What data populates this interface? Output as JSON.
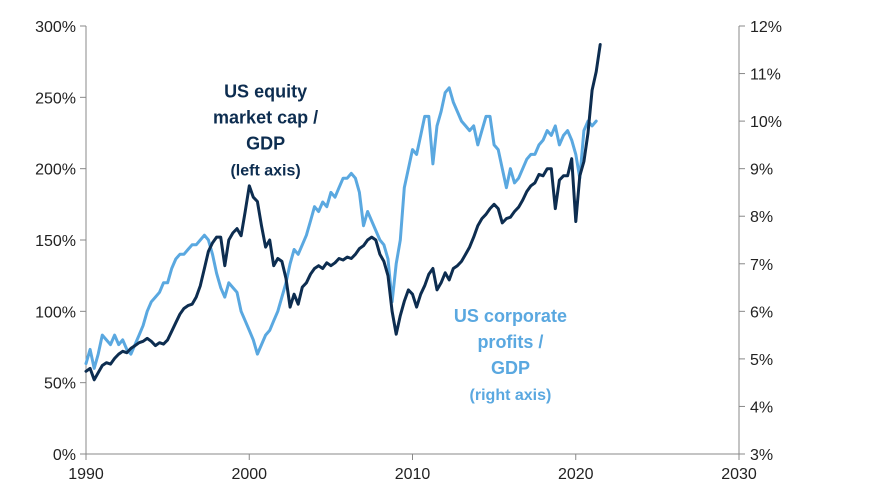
{
  "chart_data": {
    "type": "line",
    "title": "",
    "xlabel": "",
    "ylabel_left": "",
    "ylabel_right": "",
    "xlim": [
      1990,
      2030
    ],
    "ylim_left": [
      0,
      300
    ],
    "ylim_right": [
      3,
      12
    ],
    "grid": false,
    "x_ticks": [
      1990,
      2000,
      2010,
      2020,
      2030
    ],
    "x_tick_labels": [
      "1990",
      "2000",
      "2010",
      "2020",
      "2030"
    ],
    "y_left_ticks": [
      0,
      50,
      100,
      150,
      200,
      250,
      300
    ],
    "y_left_tick_labels": [
      "0%",
      "50%",
      "100%",
      "150%",
      "200%",
      "250%",
      "300%"
    ],
    "y_right_ticks": [
      3,
      4,
      5,
      6,
      7,
      8,
      9,
      10,
      11,
      12
    ],
    "y_right_tick_labels": [
      "3%",
      "4%",
      "5%",
      "6%",
      "7%",
      "8%",
      "9%",
      "10%",
      "11%",
      "12%"
    ],
    "series": [
      {
        "name": "",
        "axis": "left",
        "color": "#0d2d50",
        "points": [
          [
            1990.0,
            58
          ],
          [
            1990.25,
            60
          ],
          [
            1990.5,
            52
          ],
          [
            1990.75,
            57
          ],
          [
            1991.0,
            62
          ],
          [
            1991.25,
            64
          ],
          [
            1991.5,
            63
          ],
          [
            1991.75,
            67
          ],
          [
            1992.0,
            70
          ],
          [
            1992.25,
            72
          ],
          [
            1992.5,
            71
          ],
          [
            1992.75,
            74
          ],
          [
            1993.0,
            76
          ],
          [
            1993.25,
            78
          ],
          [
            1993.5,
            79
          ],
          [
            1993.75,
            81
          ],
          [
            1994.0,
            79
          ],
          [
            1994.25,
            76
          ],
          [
            1994.5,
            78
          ],
          [
            1994.75,
            77
          ],
          [
            1995.0,
            80
          ],
          [
            1995.25,
            86
          ],
          [
            1995.5,
            92
          ],
          [
            1995.75,
            98
          ],
          [
            1996.0,
            102
          ],
          [
            1996.25,
            104
          ],
          [
            1996.5,
            105
          ],
          [
            1996.75,
            110
          ],
          [
            1997.0,
            118
          ],
          [
            1997.25,
            130
          ],
          [
            1997.5,
            142
          ],
          [
            1997.75,
            148
          ],
          [
            1998.0,
            152
          ],
          [
            1998.25,
            152
          ],
          [
            1998.5,
            132
          ],
          [
            1998.75,
            150
          ],
          [
            1999.0,
            155
          ],
          [
            1999.25,
            158
          ],
          [
            1999.5,
            153
          ],
          [
            1999.75,
            170
          ],
          [
            2000.0,
            188
          ],
          [
            2000.25,
            180
          ],
          [
            2000.5,
            177
          ],
          [
            2000.75,
            160
          ],
          [
            2001.0,
            145
          ],
          [
            2001.25,
            150
          ],
          [
            2001.5,
            132
          ],
          [
            2001.75,
            137
          ],
          [
            2002.0,
            135
          ],
          [
            2002.25,
            123
          ],
          [
            2002.5,
            103
          ],
          [
            2002.75,
            112
          ],
          [
            2003.0,
            105
          ],
          [
            2003.25,
            117
          ],
          [
            2003.5,
            120
          ],
          [
            2003.75,
            126
          ],
          [
            2004.0,
            130
          ],
          [
            2004.25,
            132
          ],
          [
            2004.5,
            130
          ],
          [
            2004.75,
            134
          ],
          [
            2005.0,
            132
          ],
          [
            2005.25,
            134
          ],
          [
            2005.5,
            137
          ],
          [
            2005.75,
            136
          ],
          [
            2006.0,
            138
          ],
          [
            2006.25,
            137
          ],
          [
            2006.5,
            140
          ],
          [
            2006.75,
            144
          ],
          [
            2007.0,
            146
          ],
          [
            2007.25,
            150
          ],
          [
            2007.5,
            152
          ],
          [
            2007.75,
            150
          ],
          [
            2008.0,
            140
          ],
          [
            2008.25,
            135
          ],
          [
            2008.5,
            125
          ],
          [
            2008.75,
            100
          ],
          [
            2009.0,
            84
          ],
          [
            2009.25,
            97
          ],
          [
            2009.5,
            107
          ],
          [
            2009.75,
            115
          ],
          [
            2010.0,
            112
          ],
          [
            2010.25,
            103
          ],
          [
            2010.5,
            112
          ],
          [
            2010.75,
            118
          ],
          [
            2011.0,
            126
          ],
          [
            2011.25,
            130
          ],
          [
            2011.5,
            115
          ],
          [
            2011.75,
            120
          ],
          [
            2012.0,
            127
          ],
          [
            2012.25,
            122
          ],
          [
            2012.5,
            130
          ],
          [
            2012.75,
            132
          ],
          [
            2013.0,
            135
          ],
          [
            2013.25,
            140
          ],
          [
            2013.5,
            145
          ],
          [
            2013.75,
            152
          ],
          [
            2014.0,
            160
          ],
          [
            2014.25,
            165
          ],
          [
            2014.5,
            168
          ],
          [
            2014.75,
            172
          ],
          [
            2015.0,
            175
          ],
          [
            2015.25,
            172
          ],
          [
            2015.5,
            162
          ],
          [
            2015.75,
            165
          ],
          [
            2016.0,
            166
          ],
          [
            2016.25,
            170
          ],
          [
            2016.5,
            173
          ],
          [
            2016.75,
            178
          ],
          [
            2017.0,
            184
          ],
          [
            2017.25,
            188
          ],
          [
            2017.5,
            190
          ],
          [
            2017.75,
            196
          ],
          [
            2018.0,
            195
          ],
          [
            2018.25,
            200
          ],
          [
            2018.5,
            200
          ],
          [
            2018.75,
            172
          ],
          [
            2019.0,
            192
          ],
          [
            2019.25,
            195
          ],
          [
            2019.5,
            195
          ],
          [
            2019.75,
            207
          ],
          [
            2020.0,
            163
          ],
          [
            2020.25,
            195
          ],
          [
            2020.5,
            205
          ],
          [
            2020.75,
            225
          ],
          [
            2021.0,
            255
          ],
          [
            2021.25,
            268
          ],
          [
            2021.5,
            287
          ]
        ]
      },
      {
        "name": "",
        "axis": "right",
        "color": "#5aa8e0",
        "points": [
          [
            1990.0,
            4.9
          ],
          [
            1990.25,
            5.2
          ],
          [
            1990.5,
            4.8
          ],
          [
            1990.75,
            5.1
          ],
          [
            1991.0,
            5.5
          ],
          [
            1991.25,
            5.4
          ],
          [
            1991.5,
            5.3
          ],
          [
            1991.75,
            5.5
          ],
          [
            1992.0,
            5.3
          ],
          [
            1992.25,
            5.4
          ],
          [
            1992.5,
            5.2
          ],
          [
            1992.75,
            5.1
          ],
          [
            1993.0,
            5.3
          ],
          [
            1993.25,
            5.5
          ],
          [
            1993.5,
            5.7
          ],
          [
            1993.75,
            6.0
          ],
          [
            1994.0,
            6.2
          ],
          [
            1994.25,
            6.3
          ],
          [
            1994.5,
            6.4
          ],
          [
            1994.75,
            6.6
          ],
          [
            1995.0,
            6.6
          ],
          [
            1995.25,
            6.9
          ],
          [
            1995.5,
            7.1
          ],
          [
            1995.75,
            7.2
          ],
          [
            1996.0,
            7.2
          ],
          [
            1996.25,
            7.3
          ],
          [
            1996.5,
            7.4
          ],
          [
            1996.75,
            7.4
          ],
          [
            1997.0,
            7.5
          ],
          [
            1997.25,
            7.6
          ],
          [
            1997.5,
            7.5
          ],
          [
            1997.75,
            7.2
          ],
          [
            1998.0,
            6.8
          ],
          [
            1998.25,
            6.5
          ],
          [
            1998.5,
            6.3
          ],
          [
            1998.75,
            6.6
          ],
          [
            1999.0,
            6.5
          ],
          [
            1999.25,
            6.4
          ],
          [
            1999.5,
            6.0
          ],
          [
            1999.75,
            5.8
          ],
          [
            2000.0,
            5.6
          ],
          [
            2000.25,
            5.4
          ],
          [
            2000.5,
            5.1
          ],
          [
            2000.75,
            5.3
          ],
          [
            2001.0,
            5.5
          ],
          [
            2001.25,
            5.6
          ],
          [
            2001.5,
            5.8
          ],
          [
            2001.75,
            6.0
          ],
          [
            2002.0,
            6.3
          ],
          [
            2002.25,
            6.6
          ],
          [
            2002.5,
            7.0
          ],
          [
            2002.75,
            7.3
          ],
          [
            2003.0,
            7.2
          ],
          [
            2003.25,
            7.4
          ],
          [
            2003.5,
            7.6
          ],
          [
            2003.75,
            7.9
          ],
          [
            2004.0,
            8.2
          ],
          [
            2004.25,
            8.1
          ],
          [
            2004.5,
            8.3
          ],
          [
            2004.75,
            8.2
          ],
          [
            2005.0,
            8.5
          ],
          [
            2005.25,
            8.4
          ],
          [
            2005.5,
            8.6
          ],
          [
            2005.75,
            8.8
          ],
          [
            2006.0,
            8.8
          ],
          [
            2006.25,
            8.9
          ],
          [
            2006.5,
            8.8
          ],
          [
            2006.75,
            8.5
          ],
          [
            2007.0,
            7.8
          ],
          [
            2007.25,
            8.1
          ],
          [
            2007.5,
            7.9
          ],
          [
            2007.75,
            7.7
          ],
          [
            2008.0,
            7.5
          ],
          [
            2008.25,
            7.4
          ],
          [
            2008.5,
            7.1
          ],
          [
            2008.75,
            6.2
          ],
          [
            2009.0,
            7.0
          ],
          [
            2009.25,
            7.5
          ],
          [
            2009.5,
            8.6
          ],
          [
            2009.75,
            9.0
          ],
          [
            2010.0,
            9.4
          ],
          [
            2010.25,
            9.3
          ],
          [
            2010.5,
            9.7
          ],
          [
            2010.75,
            10.1
          ],
          [
            2011.0,
            10.1
          ],
          [
            2011.25,
            9.1
          ],
          [
            2011.5,
            9.9
          ],
          [
            2011.75,
            10.2
          ],
          [
            2012.0,
            10.6
          ],
          [
            2012.25,
            10.7
          ],
          [
            2012.5,
            10.4
          ],
          [
            2012.75,
            10.2
          ],
          [
            2013.0,
            10.0
          ],
          [
            2013.25,
            9.9
          ],
          [
            2013.5,
            9.8
          ],
          [
            2013.75,
            9.9
          ],
          [
            2014.0,
            9.5
          ],
          [
            2014.25,
            9.8
          ],
          [
            2014.5,
            10.1
          ],
          [
            2014.75,
            10.1
          ],
          [
            2015.0,
            9.5
          ],
          [
            2015.25,
            9.4
          ],
          [
            2015.5,
            9.0
          ],
          [
            2015.75,
            8.6
          ],
          [
            2016.0,
            9.0
          ],
          [
            2016.25,
            8.7
          ],
          [
            2016.5,
            8.8
          ],
          [
            2016.75,
            9.0
          ],
          [
            2017.0,
            9.2
          ],
          [
            2017.25,
            9.3
          ],
          [
            2017.5,
            9.3
          ],
          [
            2017.75,
            9.5
          ],
          [
            2018.0,
            9.6
          ],
          [
            2018.25,
            9.8
          ],
          [
            2018.5,
            9.7
          ],
          [
            2018.75,
            9.9
          ],
          [
            2019.0,
            9.5
          ],
          [
            2019.25,
            9.7
          ],
          [
            2019.5,
            9.8
          ],
          [
            2019.75,
            9.6
          ],
          [
            2020.0,
            9.3
          ],
          [
            2020.25,
            8.8
          ],
          [
            2020.5,
            9.8
          ],
          [
            2020.75,
            10.0
          ],
          [
            2021.0,
            9.9
          ],
          [
            2021.25,
            10.0
          ]
        ]
      }
    ],
    "annotations": [
      {
        "lines": [
          "US equity",
          "market cap /",
          "GDP",
          "(left axis)"
        ],
        "x": 2001.0,
        "y": 250,
        "axis": "left",
        "color": "#0d2d50"
      },
      {
        "lines": [
          "US corporate",
          "profits /",
          "GDP",
          "(right axis)"
        ],
        "x": 2016.0,
        "y": 5.78,
        "axis": "right",
        "color": "#5aa8e0"
      }
    ]
  }
}
